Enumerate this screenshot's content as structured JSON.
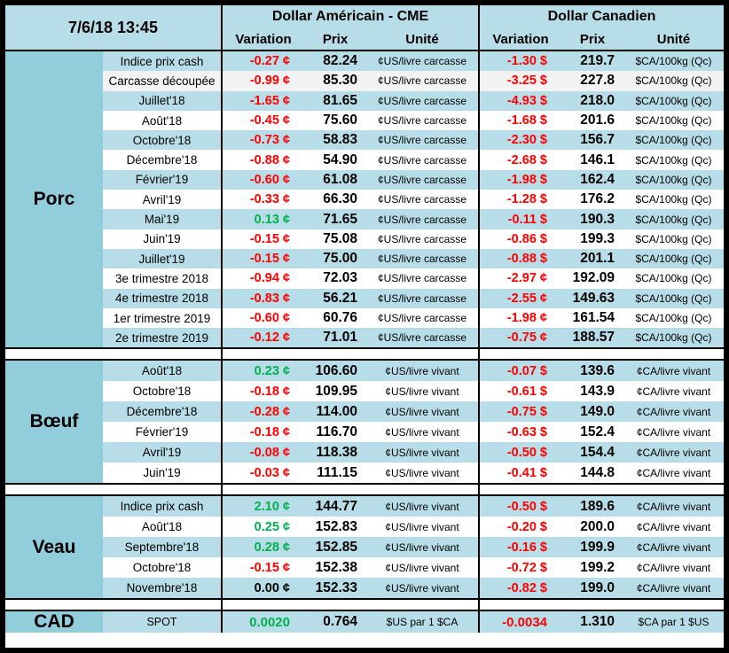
{
  "header": {
    "datetime": "7/6/18 13:45",
    "us_group": "Dollar Américain - CME",
    "ca_group": "Dollar Canadien",
    "columns": {
      "variation": "Variation",
      "prix": "Prix",
      "unite": "Unité"
    }
  },
  "colors": {
    "section_bg": "#92CDDC",
    "stripe_bg": "#B7DEE8",
    "alt_bg": "#F2F2F2",
    "positive": "#00B050",
    "negative": "#FF0000"
  },
  "sections": [
    {
      "name": "Porc",
      "rows": [
        {
          "label": "Indice prix cash",
          "us_variation": "-0.27 ¢",
          "us_prix": "82.24",
          "us_unite": "¢US/livre carcasse",
          "ca_variation": "-1.30 $",
          "ca_prix": "219.7",
          "ca_unite": "$CA/100kg (Qc)"
        },
        {
          "label": "Carcasse découpée",
          "us_variation": "-0.99 ¢",
          "us_prix": "85.30",
          "us_unite": "¢US/livre carcasse",
          "ca_variation": "-3.25 $",
          "ca_prix": "227.8",
          "ca_unite": "$CA/100kg (Qc)"
        },
        {
          "label": "Juillet'18",
          "us_variation": "-1.65 ¢",
          "us_prix": "81.65",
          "us_unite": "¢US/livre carcasse",
          "ca_variation": "-4.93 $",
          "ca_prix": "218.0",
          "ca_unite": "$CA/100kg (Qc)"
        },
        {
          "label": "Août'18",
          "us_variation": "-0.45 ¢",
          "us_prix": "75.60",
          "us_unite": "¢US/livre carcasse",
          "ca_variation": "-1.68 $",
          "ca_prix": "201.6",
          "ca_unite": "$CA/100kg (Qc)"
        },
        {
          "label": "Octobre'18",
          "us_variation": "-0.73 ¢",
          "us_prix": "58.83",
          "us_unite": "¢US/livre carcasse",
          "ca_variation": "-2.30 $",
          "ca_prix": "156.7",
          "ca_unite": "$CA/100kg (Qc)"
        },
        {
          "label": "Décembre'18",
          "us_variation": "-0.88 ¢",
          "us_prix": "54.90",
          "us_unite": "¢US/livre carcasse",
          "ca_variation": "-2.68 $",
          "ca_prix": "146.1",
          "ca_unite": "$CA/100kg (Qc)"
        },
        {
          "label": "Février'19",
          "us_variation": "-0.60 ¢",
          "us_prix": "61.08",
          "us_unite": "¢US/livre carcasse",
          "ca_variation": "-1.98 $",
          "ca_prix": "162.4",
          "ca_unite": "$CA/100kg (Qc)"
        },
        {
          "label": "Avril'19",
          "us_variation": "-0.33 ¢",
          "us_prix": "66.30",
          "us_unite": "¢US/livre carcasse",
          "ca_variation": "-1.28 $",
          "ca_prix": "176.2",
          "ca_unite": "$CA/100kg (Qc)"
        },
        {
          "label": "Mai'19",
          "us_variation": "0.13 ¢",
          "us_prix": "71.65",
          "us_unite": "¢US/livre carcasse",
          "ca_variation": "-0.11 $",
          "ca_prix": "190.3",
          "ca_unite": "$CA/100kg (Qc)"
        },
        {
          "label": "Juin'19",
          "us_variation": "-0.15 ¢",
          "us_prix": "75.08",
          "us_unite": "¢US/livre carcasse",
          "ca_variation": "-0.86 $",
          "ca_prix": "199.3",
          "ca_unite": "$CA/100kg (Qc)"
        },
        {
          "label": "Juillet'19",
          "us_variation": "-0.15 ¢",
          "us_prix": "75.00",
          "us_unite": "¢US/livre carcasse",
          "ca_variation": "-0.88 $",
          "ca_prix": "201.1",
          "ca_unite": "$CA/100kg (Qc)"
        },
        {
          "label": "3e trimestre 2018",
          "us_variation": "-0.94 ¢",
          "us_prix": "72.03",
          "us_unite": "¢US/livre carcasse",
          "ca_variation": "-2.97 ¢",
          "ca_prix": "192.09",
          "ca_unite": "$CA/100kg (Qc)"
        },
        {
          "label": "4e trimestre 2018",
          "us_variation": "-0.83 ¢",
          "us_prix": "56.21",
          "us_unite": "¢US/livre carcasse",
          "ca_variation": "-2.55 ¢",
          "ca_prix": "149.63",
          "ca_unite": "$CA/100kg (Qc)"
        },
        {
          "label": "1er trimestre 2019",
          "us_variation": "-0.60 ¢",
          "us_prix": "60.76",
          "us_unite": "¢US/livre carcasse",
          "ca_variation": "-1.98 ¢",
          "ca_prix": "161.54",
          "ca_unite": "$CA/100kg (Qc)"
        },
        {
          "label": "2e trimestre 2019",
          "us_variation": "-0.12 ¢",
          "us_prix": "71.01",
          "us_unite": "¢US/livre carcasse",
          "ca_variation": "-0.75 ¢",
          "ca_prix": "188.57",
          "ca_unite": "$CA/100kg (Qc)"
        }
      ]
    },
    {
      "name": "Bœuf",
      "rows": [
        {
          "label": "Août'18",
          "us_variation": "0.23 ¢",
          "us_prix": "106.60",
          "us_unite": "¢US/livre vivant",
          "ca_variation": "-0.07 $",
          "ca_prix": "139.6",
          "ca_unite": "¢CA/livre vivant"
        },
        {
          "label": "Octobre'18",
          "us_variation": "-0.18 ¢",
          "us_prix": "109.95",
          "us_unite": "¢US/livre vivant",
          "ca_variation": "-0.61 $",
          "ca_prix": "143.9",
          "ca_unite": "¢CA/livre vivant"
        },
        {
          "label": "Décembre'18",
          "us_variation": "-0.28 ¢",
          "us_prix": "114.00",
          "us_unite": "¢US/livre vivant",
          "ca_variation": "-0.75 $",
          "ca_prix": "149.0",
          "ca_unite": "¢CA/livre vivant"
        },
        {
          "label": "Février'19",
          "us_variation": "-0.18 ¢",
          "us_prix": "116.70",
          "us_unite": "¢US/livre vivant",
          "ca_variation": "-0.63 $",
          "ca_prix": "152.4",
          "ca_unite": "¢CA/livre vivant"
        },
        {
          "label": "Avril'19",
          "us_variation": "-0.08 ¢",
          "us_prix": "118.38",
          "us_unite": "¢US/livre vivant",
          "ca_variation": "-0.50 $",
          "ca_prix": "154.4",
          "ca_unite": "¢CA/livre vivant"
        },
        {
          "label": "Juin'19",
          "us_variation": "-0.03 ¢",
          "us_prix": "111.15",
          "us_unite": "¢US/livre vivant",
          "ca_variation": "-0.41 $",
          "ca_prix": "144.8",
          "ca_unite": "¢CA/livre vivant"
        }
      ]
    },
    {
      "name": "Veau",
      "rows": [
        {
          "label": "Indice prix cash",
          "us_variation": "2.10 ¢",
          "us_prix": "144.77",
          "us_unite": "¢US/livre vivant",
          "ca_variation": "-0.50 $",
          "ca_prix": "189.6",
          "ca_unite": "¢CA/livre vivant"
        },
        {
          "label": "Août'18",
          "us_variation": "0.25 ¢",
          "us_prix": "152.83",
          "us_unite": "¢US/livre vivant",
          "ca_variation": "-0.20 $",
          "ca_prix": "200.0",
          "ca_unite": "¢CA/livre vivant"
        },
        {
          "label": "Septembre'18",
          "us_variation": "0.28 ¢",
          "us_prix": "152.85",
          "us_unite": "¢US/livre vivant",
          "ca_variation": "-0.16 $",
          "ca_prix": "199.9",
          "ca_unite": "¢CA/livre vivant"
        },
        {
          "label": "Octobre'18",
          "us_variation": "-0.15 ¢",
          "us_prix": "152.38",
          "us_unite": "¢US/livre vivant",
          "ca_variation": "-0.72 $",
          "ca_prix": "199.2",
          "ca_unite": "¢CA/livre vivant"
        },
        {
          "label": "Novembre'18",
          "us_variation": "0.00 ¢",
          "us_prix": "152.33",
          "us_unite": "¢US/livre vivant",
          "ca_variation": "-0.82 $",
          "ca_prix": "199.0",
          "ca_unite": "¢CA/livre vivant"
        }
      ]
    },
    {
      "name": "CAD",
      "rows": [
        {
          "label": "SPOT",
          "us_variation": "0.0020",
          "us_prix": "0.764",
          "us_unite": "$US par 1 $CA",
          "ca_variation": "-0.0034",
          "ca_prix": "1.310",
          "ca_unite": "$CA par 1 $US"
        }
      ]
    }
  ]
}
